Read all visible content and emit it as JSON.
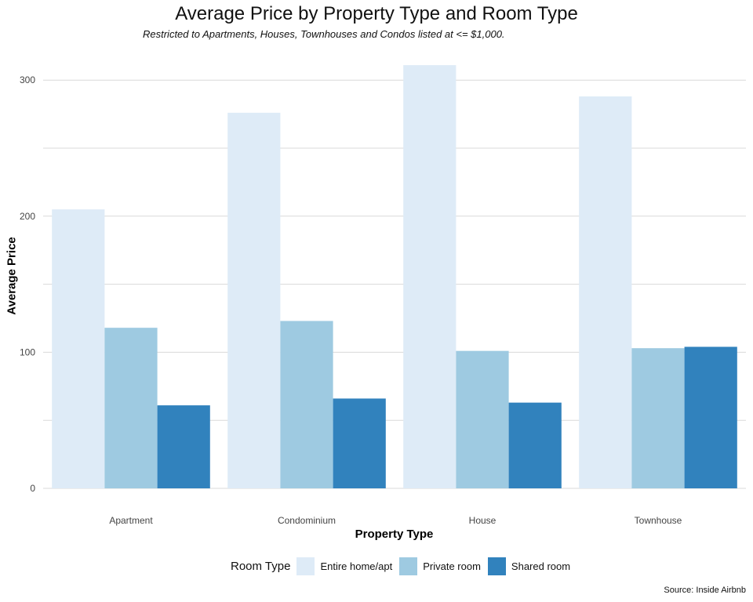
{
  "chart_data": {
    "type": "bar",
    "title": "Average Price by Property Type and Room Type",
    "subtitle": "Restricted to Apartments, Houses, Townhouses and Condos listed at <= $1,000.",
    "xlabel": "Property Type",
    "ylabel": "Average Price",
    "caption": "Source: Inside Airbnb",
    "categories": [
      "Apartment",
      "Condominium",
      "House",
      "Townhouse"
    ],
    "ylim": [
      0,
      310
    ],
    "yticks": [
      "0",
      "100",
      "200",
      "300"
    ],
    "grid": true,
    "legend": {
      "title": "Room Type",
      "position": "bottom"
    },
    "series": [
      {
        "name": "Entire home/apt",
        "color": "#deebf7",
        "values": [
          205,
          276,
          311,
          288
        ]
      },
      {
        "name": "Private room",
        "color": "#9ecae1",
        "values": [
          118,
          123,
          101,
          103
        ]
      },
      {
        "name": "Shared room",
        "color": "#3182bd",
        "values": [
          61,
          66,
          63,
          104
        ]
      }
    ]
  }
}
